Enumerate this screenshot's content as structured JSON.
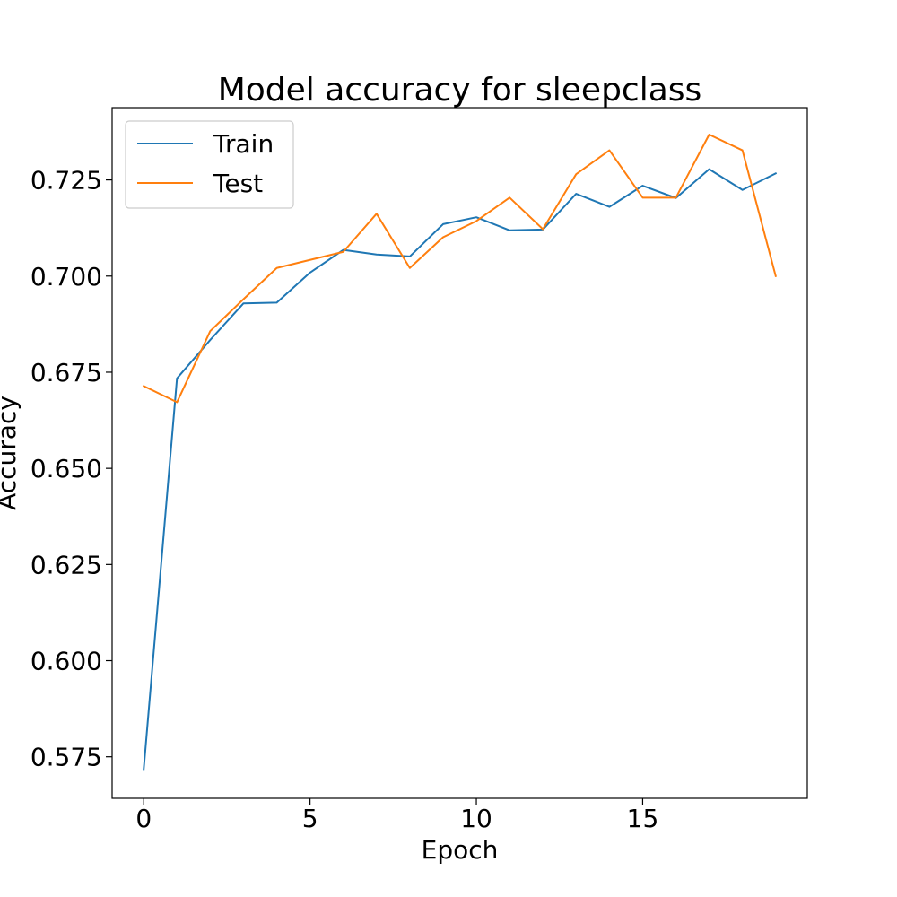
{
  "chart_data": {
    "type": "line",
    "title": "Model accuracy for sleepclass",
    "xlabel": "Epoch",
    "ylabel": "Accuracy",
    "xlim": [
      -0.95,
      19.95
    ],
    "ylim": [
      0.5642,
      0.7438
    ],
    "xticks": [
      0,
      5,
      10,
      15
    ],
    "xtick_labels": [
      "0",
      "5",
      "10",
      "15"
    ],
    "yticks": [
      0.575,
      0.6,
      0.625,
      0.65,
      0.675,
      0.7,
      0.725
    ],
    "ytick_labels": [
      "0.575",
      "0.600",
      "0.625",
      "0.650",
      "0.675",
      "0.700",
      "0.725"
    ],
    "grid": false,
    "legend_position": "top-left",
    "x": [
      0,
      1,
      2,
      3,
      4,
      5,
      6,
      7,
      8,
      9,
      10,
      11,
      12,
      13,
      14,
      15,
      16,
      17,
      18,
      19
    ],
    "series": [
      {
        "name": "Train",
        "color": "#1f77b4",
        "values": [
          0.5718,
          0.6734,
          0.6834,
          0.6929,
          0.6931,
          0.7009,
          0.7068,
          0.7056,
          0.7051,
          0.7135,
          0.7153,
          0.7119,
          0.7121,
          0.7214,
          0.718,
          0.7235,
          0.7203,
          0.7278,
          0.7224,
          0.7267
        ]
      },
      {
        "name": "Test",
        "color": "#ff7f0e",
        "values": [
          0.6714,
          0.6672,
          0.6857,
          0.694,
          0.7021,
          0.7042,
          0.7063,
          0.7162,
          0.7021,
          0.7101,
          0.7143,
          0.7204,
          0.7122,
          0.7265,
          0.7327,
          0.7204,
          0.7204,
          0.7368,
          0.7327,
          0.7
        ]
      }
    ]
  }
}
